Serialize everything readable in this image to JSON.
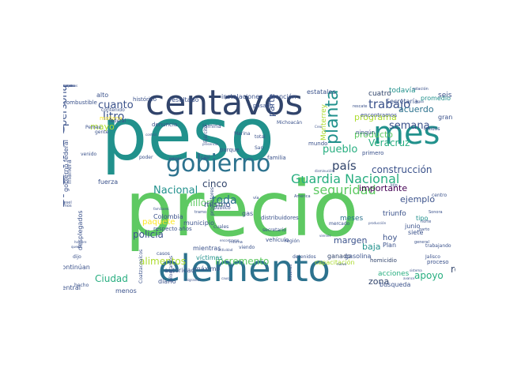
{
  "palette": {
    "dark_purple": "#440154",
    "indigo": "#3b528b",
    "blue_teal": "#2c728e",
    "teal": "#21918c",
    "sea_green": "#28ae80",
    "green": "#5ec962",
    "lime": "#addc30",
    "yellow": "#fde725"
  },
  "words": [
    {
      "text": "peso",
      "color": "#21918c",
      "size": 92,
      "rot": 0
    },
    {
      "text": "precio",
      "color": "#5ec962",
      "size": 96,
      "rot": 0
    },
    {
      "text": "centavos",
      "color": "#31446b",
      "size": 44,
      "rot": 0
    },
    {
      "text": "mes",
      "color": "#21918c",
      "size": 40,
      "rot": 0
    },
    {
      "text": "elemento",
      "color": "#2c728e",
      "size": 46,
      "rot": 0
    },
    {
      "text": "gobierno",
      "color": "#2c728e",
      "size": 30,
      "rot": 0
    },
    {
      "text": "delito",
      "color": "#3b528b",
      "size": 42,
      "rot": -90
    },
    {
      "text": "planta",
      "color": "#21918c",
      "size": 22,
      "rot": -90
    },
    {
      "text": "Guardia Nacional",
      "color": "#28ae80",
      "size": 16,
      "rot": 0
    },
    {
      "text": "seguridad",
      "color": "#5ec962",
      "size": 16,
      "rot": 0
    },
    {
      "text": "trabajo",
      "color": "#3b528b",
      "size": 15,
      "rot": 0
    },
    {
      "text": "semana",
      "color": "#3b528b",
      "size": 13,
      "rot": 0
    },
    {
      "text": "construcción",
      "color": "#3b528b",
      "size": 12,
      "rot": 0
    },
    {
      "text": "país",
      "color": "#31446b",
      "size": 15,
      "rot": 0
    },
    {
      "text": "pueblo",
      "color": "#28ae80",
      "size": 13,
      "rot": 0
    },
    {
      "text": "cuanto",
      "color": "#3b528b",
      "size": 13,
      "rot": 0
    },
    {
      "text": "litro",
      "color": "#3b528b",
      "size": 14,
      "rot": 0
    },
    {
      "text": "persona",
      "color": "#3b528b",
      "size": 13,
      "rot": -90
    },
    {
      "text": "toda",
      "color": "#2c728e",
      "size": 14,
      "rot": 0
    },
    {
      "text": "cinco",
      "color": "#31446b",
      "size": 12,
      "rot": 0
    },
    {
      "text": "Nacional",
      "color": "#21918c",
      "size": 13,
      "rot": 0
    },
    {
      "text": "millones",
      "color": "#5ec962",
      "size": 12,
      "rot": 0
    },
    {
      "text": "policía",
      "color": "#3b528b",
      "size": 12,
      "rot": 0
    },
    {
      "text": "alimentos",
      "color": "#addc30",
      "size": 12,
      "rot": 0
    },
    {
      "text": "incremento",
      "color": "#5ec962",
      "size": 12,
      "rot": 0
    },
    {
      "text": "Ciudad",
      "color": "#28ae80",
      "size": 12,
      "rot": 0
    },
    {
      "text": "apoyo",
      "color": "#28ae80",
      "size": 12,
      "rot": 0
    },
    {
      "text": "robo",
      "color": "#31446b",
      "size": 12,
      "rot": 0
    },
    {
      "text": "zona",
      "color": "#31446b",
      "size": 11,
      "rot": 0
    },
    {
      "text": "Veracruz",
      "color": "#28ae80",
      "size": 12,
      "rot": 0
    },
    {
      "text": "producto",
      "color": "#5ec962",
      "size": 11,
      "rot": 0
    },
    {
      "text": "programa",
      "color": "#addc30",
      "size": 11,
      "rot": 0
    },
    {
      "text": "acuerdo",
      "color": "#2c728e",
      "size": 11,
      "rot": 0
    },
    {
      "text": "ejemplo",
      "color": "#3b528b",
      "size": 11,
      "rot": 0
    },
    {
      "text": "importante",
      "color": "#440154",
      "size": 11,
      "rot": 0
    },
    {
      "text": "margen",
      "color": "#3b528b",
      "size": 11,
      "rot": 0
    },
    {
      "text": "baja",
      "color": "#21918c",
      "size": 11,
      "rot": 0
    },
    {
      "text": "hoy",
      "color": "#3b528b",
      "size": 10,
      "rot": 0
    },
    {
      "text": "mayo",
      "color": "#addc30",
      "size": 11,
      "rot": 0
    },
    {
      "text": "mismo",
      "color": "#3b528b",
      "size": 10,
      "rot": 0
    },
    {
      "text": "paquete",
      "color": "#fde725",
      "size": 10,
      "rot": 0
    },
    {
      "text": "parte",
      "color": "#3b528b",
      "size": 11,
      "rot": -90
    },
    {
      "text": "Monterrey",
      "color": "#addc30",
      "size": 9,
      "rot": -90
    },
    {
      "text": "todavía",
      "color": "#21918c",
      "size": 9,
      "rot": 0
    },
    {
      "text": "cuatro",
      "color": "#31446b",
      "size": 9,
      "rot": 0
    },
    {
      "text": "Secretaría",
      "color": "#3b528b",
      "size": 8,
      "rot": 0
    },
    {
      "text": "promedio",
      "color": "#21918c",
      "size": 8,
      "rot": 0
    },
    {
      "text": "seis",
      "color": "#3b528b",
      "size": 9,
      "rot": 0
    },
    {
      "text": "gran",
      "color": "#3b528b",
      "size": 8,
      "rot": 0
    },
    {
      "text": "meses",
      "color": "#2c728e",
      "size": 9,
      "rot": 0
    },
    {
      "text": "triunfo",
      "color": "#3b528b",
      "size": 9,
      "rot": 0
    },
    {
      "text": "tipo",
      "color": "#21918c",
      "size": 8,
      "rot": 0
    },
    {
      "text": "junio",
      "color": "#3b528b",
      "size": 8,
      "rot": 0
    },
    {
      "text": "siete",
      "color": "#3b528b",
      "size": 8,
      "rot": 0
    },
    {
      "text": "Plan",
      "color": "#3b528b",
      "size": 8,
      "rot": 0
    },
    {
      "text": "ganado",
      "color": "#31446b",
      "size": 8,
      "rot": 0
    },
    {
      "text": "gasolina",
      "color": "#3b528b",
      "size": 8,
      "rot": 0
    },
    {
      "text": "capacitación",
      "color": "#addc30",
      "size": 8,
      "rot": 0
    },
    {
      "text": "acciones",
      "color": "#28ae80",
      "size": 9,
      "rot": 0
    },
    {
      "text": "búsqueda",
      "color": "#3b528b",
      "size": 8,
      "rot": 0
    },
    {
      "text": "proceso",
      "color": "#3b528b",
      "size": 7,
      "rot": 0
    },
    {
      "text": "homicidio",
      "color": "#31446b",
      "size": 7,
      "rot": 0
    },
    {
      "text": "mientras",
      "color": "#3b528b",
      "size": 8,
      "rot": 0
    },
    {
      "text": "víctimas",
      "color": "#21918c",
      "size": 8,
      "rot": 0
    },
    {
      "text": "máximo",
      "color": "#3b528b",
      "size": 8,
      "rot": 0
    },
    {
      "text": "autoridad",
      "color": "#3b528b",
      "size": 8,
      "rot": 0
    },
    {
      "text": "menos",
      "color": "#3b528b",
      "size": 8,
      "rot": 0
    },
    {
      "text": "diario",
      "color": "#3b528b",
      "size": 8,
      "rot": 0
    },
    {
      "text": "continúan",
      "color": "#3b528b",
      "size": 8,
      "rot": 0
    },
    {
      "text": "central",
      "color": "#3b528b",
      "size": 8,
      "rot": 0
    },
    {
      "text": "fuerza",
      "color": "#3b528b",
      "size": 8,
      "rot": 0
    },
    {
      "text": "manera",
      "color": "#3b528b",
      "size": 8,
      "rot": -90
    },
    {
      "text": "desplegados",
      "color": "#3b528b",
      "size": 8,
      "rot": -90
    },
    {
      "text": "canasta básica",
      "color": "#3b528b",
      "size": 7,
      "rot": -90
    },
    {
      "text": "gobierno federal",
      "color": "#3b528b",
      "size": 8,
      "rot": -90
    },
    {
      "text": "municipio",
      "color": "#3b528b",
      "size": 8,
      "rot": 0
    },
    {
      "text": "Colombia",
      "color": "#3b528b",
      "size": 8,
      "rot": 0
    },
    {
      "text": "denuncia",
      "color": "#3b528b",
      "size": 7,
      "rot": 0
    },
    {
      "text": "lámina",
      "color": "#3b528b",
      "size": 7,
      "rot": 0
    },
    {
      "text": "parque",
      "color": "#3b528b",
      "size": 7,
      "rot": 0
    },
    {
      "text": "familia",
      "color": "#3b528b",
      "size": 7,
      "rot": 0
    },
    {
      "text": "mundo",
      "color": "#3b528b",
      "size": 7,
      "rot": 0
    },
    {
      "text": "primero",
      "color": "#3b528b",
      "size": 7,
      "rot": 0
    },
    {
      "text": "ningún",
      "color": "#3b528b",
      "size": 7,
      "rot": 0
    },
    {
      "text": "encontramos",
      "color": "#3b528b",
      "size": 7,
      "rot": 0
    },
    {
      "text": "histórico",
      "color": "#3b528b",
      "size": 7,
      "rot": 0
    },
    {
      "text": "resultado",
      "color": "#3b528b",
      "size": 8,
      "rot": 0
    },
    {
      "text": "instalaciones",
      "color": "#3b528b",
      "size": 8,
      "rot": 0
    },
    {
      "text": "atención",
      "color": "#3b528b",
      "size": 8,
      "rot": 0
    },
    {
      "text": "estatales",
      "color": "#3b528b",
      "size": 8,
      "rot": 0
    },
    {
      "text": "combustible",
      "color": "#3b528b",
      "size": 7,
      "rot": 0
    },
    {
      "text": "alto",
      "color": "#3b528b",
      "size": 8,
      "rot": 0
    },
    {
      "text": "contenido",
      "color": "#3b528b",
      "size": 6,
      "rot": 0
    },
    {
      "text": "mañana",
      "color": "#fde725",
      "size": 7,
      "rot": 0
    },
    {
      "text": "pasado",
      "color": "#3b528b",
      "size": 7,
      "rot": 0
    },
    {
      "text": "Michoacán",
      "color": "#3b528b",
      "size": 6,
      "rot": 0
    },
    {
      "text": "federal",
      "color": "#3b528b",
      "size": 6,
      "rot": 0
    },
    {
      "text": "Pemex",
      "color": "#3b528b",
      "size": 6,
      "rot": 0
    },
    {
      "text": "gente",
      "color": "#3b528b",
      "size": 6,
      "rot": 0
    },
    {
      "text": "venido",
      "color": "#3b528b",
      "size": 6,
      "rot": 0
    },
    {
      "text": "casi",
      "color": "#3b528b",
      "size": 6,
      "rot": 0
    },
    {
      "text": "Ejército",
      "color": "#3b528b",
      "size": 6,
      "rot": -90
    },
    {
      "text": "Marina",
      "color": "#3b528b",
      "size": 6,
      "rot": 0
    },
    {
      "text": "total",
      "color": "#3b528b",
      "size": 6,
      "rot": 0
    },
    {
      "text": "San",
      "color": "#3b528b",
      "size": 6,
      "rot": 0
    },
    {
      "text": "poder",
      "color": "#3b528b",
      "size": 6,
      "rot": 0
    },
    {
      "text": "público",
      "color": "#3b528b",
      "size": 6,
      "rot": 0
    },
    {
      "text": "productores",
      "color": "#3b528b",
      "size": 6,
      "rot": -90
    },
    {
      "text": "gas",
      "color": "#3b528b",
      "size": 8,
      "rot": 0
    },
    {
      "text": "mercado",
      "color": "#3b528b",
      "size": 6,
      "rot": 0
    },
    {
      "text": "distribuidores",
      "color": "#3b528b",
      "size": 7,
      "rot": 0
    },
    {
      "text": "vehículo",
      "color": "#3b528b",
      "size": 7,
      "rot": 0
    },
    {
      "text": "secretario",
      "color": "#3b528b",
      "size": 6,
      "rot": 0
    },
    {
      "text": "cuales",
      "color": "#3b528b",
      "size": 6,
      "rot": 0
    },
    {
      "text": "años",
      "color": "#3b528b",
      "size": 7,
      "rot": 0
    },
    {
      "text": "respecto",
      "color": "#3b528b",
      "size": 7,
      "rot": 0
    },
    {
      "text": "casos",
      "color": "#3b528b",
      "size": 6,
      "rot": 0
    },
    {
      "text": "viendo",
      "color": "#3b528b",
      "size": 6,
      "rot": 0
    },
    {
      "text": "región",
      "color": "#3b528b",
      "size": 6,
      "rot": 0
    },
    {
      "text": "detenidos",
      "color": "#3b528b",
      "size": 6,
      "rot": 0
    },
    {
      "text": "trabajando",
      "color": "#3b528b",
      "size": 6,
      "rot": 0
    },
    {
      "text": "Jalisco",
      "color": "#3b528b",
      "size": 6,
      "rot": 0
    },
    {
      "text": "dijo",
      "color": "#3b528b",
      "size": 6,
      "rot": 0
    },
    {
      "text": "centro",
      "color": "#3b528b",
      "size": 6,
      "rot": 0
    },
    {
      "text": "Unidos",
      "color": "#3b528b",
      "size": 6,
      "rot": 0
    },
    {
      "text": "Coatzacoalcos",
      "color": "#3b528b",
      "size": 6,
      "rot": -90
    },
    {
      "text": "kilogramos",
      "color": "#3b528b",
      "size": 6,
      "rot": -90
    },
    {
      "text": "hecho",
      "color": "#3b528b",
      "size": 6,
      "rot": 0
    },
    {
      "text": "rescate",
      "color": "#3b528b",
      "size": 5,
      "rot": 0
    },
    {
      "text": "parto",
      "color": "#3b528b",
      "size": 5,
      "rot": 0
    },
    {
      "text": "norte",
      "color": "#3b528b",
      "size": 5,
      "rot": 0
    },
    {
      "text": "Sonora",
      "color": "#3b528b",
      "size": 5,
      "rot": 0
    },
    {
      "text": "América",
      "color": "#3b528b",
      "size": 5,
      "rot": 0
    },
    {
      "text": "tramo",
      "color": "#3b528b",
      "size": 5,
      "rot": 0
    },
    {
      "text": "diesel",
      "color": "#3b528b",
      "size": 5,
      "rot": 0
    },
    {
      "text": "vemos",
      "color": "#3b528b",
      "size": 5,
      "rot": 0
    },
    {
      "text": "kilo",
      "color": "#3b528b",
      "size": 5,
      "rot": 0
    },
    {
      "text": "general",
      "color": "#3b528b",
      "size": 5,
      "rot": 0
    },
    {
      "text": "aduanas",
      "color": "#3b528b",
      "size": 5,
      "rot": -90
    },
    {
      "text": "misma",
      "color": "#3b528b",
      "size": 5,
      "rot": 0
    },
    {
      "text": "vía",
      "color": "#3b528b",
      "size": 5,
      "rot": 0
    },
    {
      "text": "relación",
      "color": "#3b528b",
      "size": 5,
      "rot": 0
    },
    {
      "text": "agua",
      "color": "#3b528b",
      "size": 4,
      "rot": 0
    },
    {
      "text": "causa",
      "color": "#3b528b",
      "size": 4,
      "rot": 0
    },
    {
      "text": "migrantes",
      "color": "#3b528b",
      "size": 4,
      "rot": 0
    },
    {
      "text": "entrega",
      "color": "#3b528b",
      "size": 4,
      "rot": 0
    },
    {
      "text": "queda",
      "color": "#3b528b",
      "size": 4,
      "rot": 0
    },
    {
      "text": "hombre",
      "color": "#3b528b",
      "size": 4,
      "rot": 0
    },
    {
      "text": "sistema",
      "color": "#3b528b",
      "size": 4,
      "rot": 0
    },
    {
      "text": "avance",
      "color": "#3b528b",
      "size": 4,
      "rot": 0
    },
    {
      "text": "viernes",
      "color": "#3b528b",
      "size": 4,
      "rot": 0
    },
    {
      "text": "nuevo",
      "color": "#3b528b",
      "size": 4,
      "rot": 0
    },
    {
      "text": "actividad",
      "color": "#3b528b",
      "size": 4,
      "rot": 0
    },
    {
      "text": "encontraron",
      "color": "#3b528b",
      "size": 4,
      "rot": 0
    },
    {
      "text": "producción",
      "color": "#3b528b",
      "size": 4,
      "rot": 0
    },
    {
      "text": "presencia",
      "color": "#3b528b",
      "size": 4,
      "rot": 0
    },
    {
      "text": "control",
      "color": "#3b528b",
      "size": 4,
      "rot": 0
    },
    {
      "text": "disminución",
      "color": "#3b528b",
      "size": 4,
      "rot": 0
    },
    {
      "text": "familiares",
      "color": "#3b528b",
      "size": 4,
      "rot": 0
    },
    {
      "text": "Creo",
      "color": "#3b528b",
      "size": 4,
      "rot": 0
    },
    {
      "text": "Cumbia",
      "color": "#3b528b",
      "size": 4,
      "rot": 0
    },
    {
      "text": "nacemos",
      "color": "#3b528b",
      "size": 4,
      "rot": 0
    },
    {
      "text": "mejor",
      "color": "#3b528b",
      "size": 4,
      "rot": 0
    },
    {
      "text": "estado",
      "color": "#3b528b",
      "size": 4,
      "rot": 0
    }
  ]
}
